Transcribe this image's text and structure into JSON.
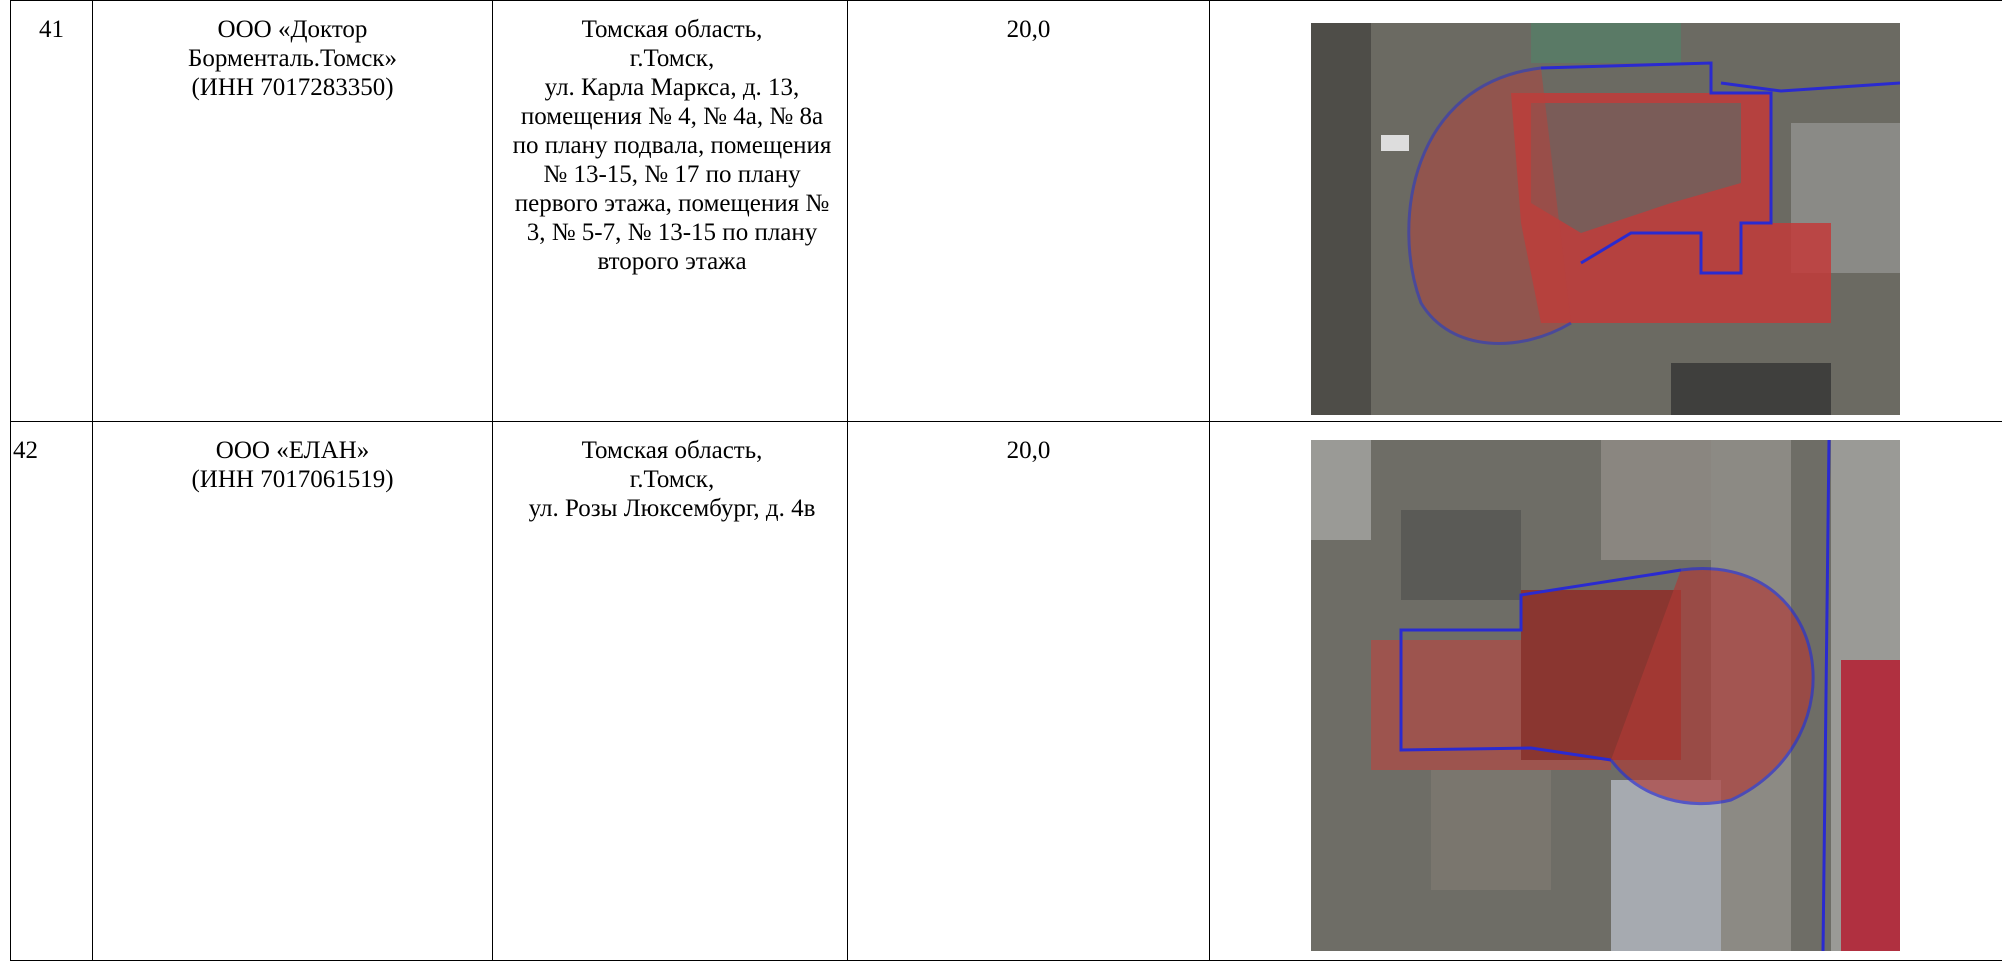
{
  "table": {
    "rows": [
      {
        "number": "41",
        "organization": [
          "ООО «Доктор Борменталь.Томск»",
          "(ИНН 7017283350)"
        ],
        "address": [
          "Томская область,",
          "г.Томск,",
          "ул. Карла Маркса, д. 13, помещения № 4, № 4а, № 8а по плану подвала, помещения № 13-15, № 17 по плану первого этажа, помещения № 3, № 5-7, № 13-15 по плану второго этажа"
        ],
        "value": "20,0"
      },
      {
        "number": "42",
        "organization": [
          "ООО «ЕЛАН»",
          "(ИНН 7017061519)"
        ],
        "address": [
          "Томская область,",
          "г.Томск,",
          "ул. Розы Люксембург, д. 4в"
        ],
        "value": "20,0"
      }
    ]
  }
}
